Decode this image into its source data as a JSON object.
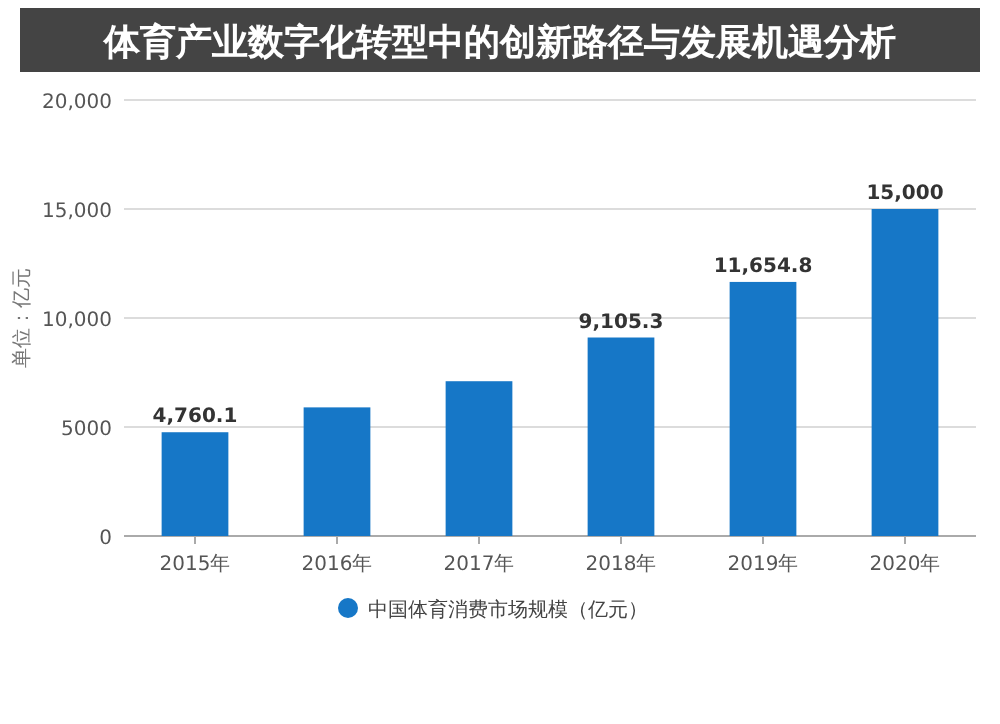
{
  "chart_data": {
    "type": "bar",
    "title": "体育产业数字化转型中的创新路径与发展机遇分析",
    "ylabel": "单位：亿元",
    "categories": [
      "2015年",
      "2016年",
      "2017年",
      "2018年",
      "2019年",
      "2020年"
    ],
    "series": [
      {
        "name": "中国体育消费市场规模（亿元）",
        "color": "#1677c7",
        "values": [
          4760.1,
          5900,
          7100,
          9105.3,
          11654.8,
          15000
        ],
        "value_labels": [
          "4,760.1",
          null,
          null,
          "9,105.3",
          "11,654.8",
          "15,000"
        ]
      }
    ],
    "ylim": [
      0,
      20000
    ],
    "yticks": [
      {
        "value": 0,
        "label": "0"
      },
      {
        "value": 5000,
        "label": "5000"
      },
      {
        "value": 10000,
        "label": "10,000"
      },
      {
        "value": 15000,
        "label": "15,000"
      },
      {
        "value": 20000,
        "label": "20,000"
      }
    ],
    "grid": "y",
    "legend": "bottom"
  }
}
